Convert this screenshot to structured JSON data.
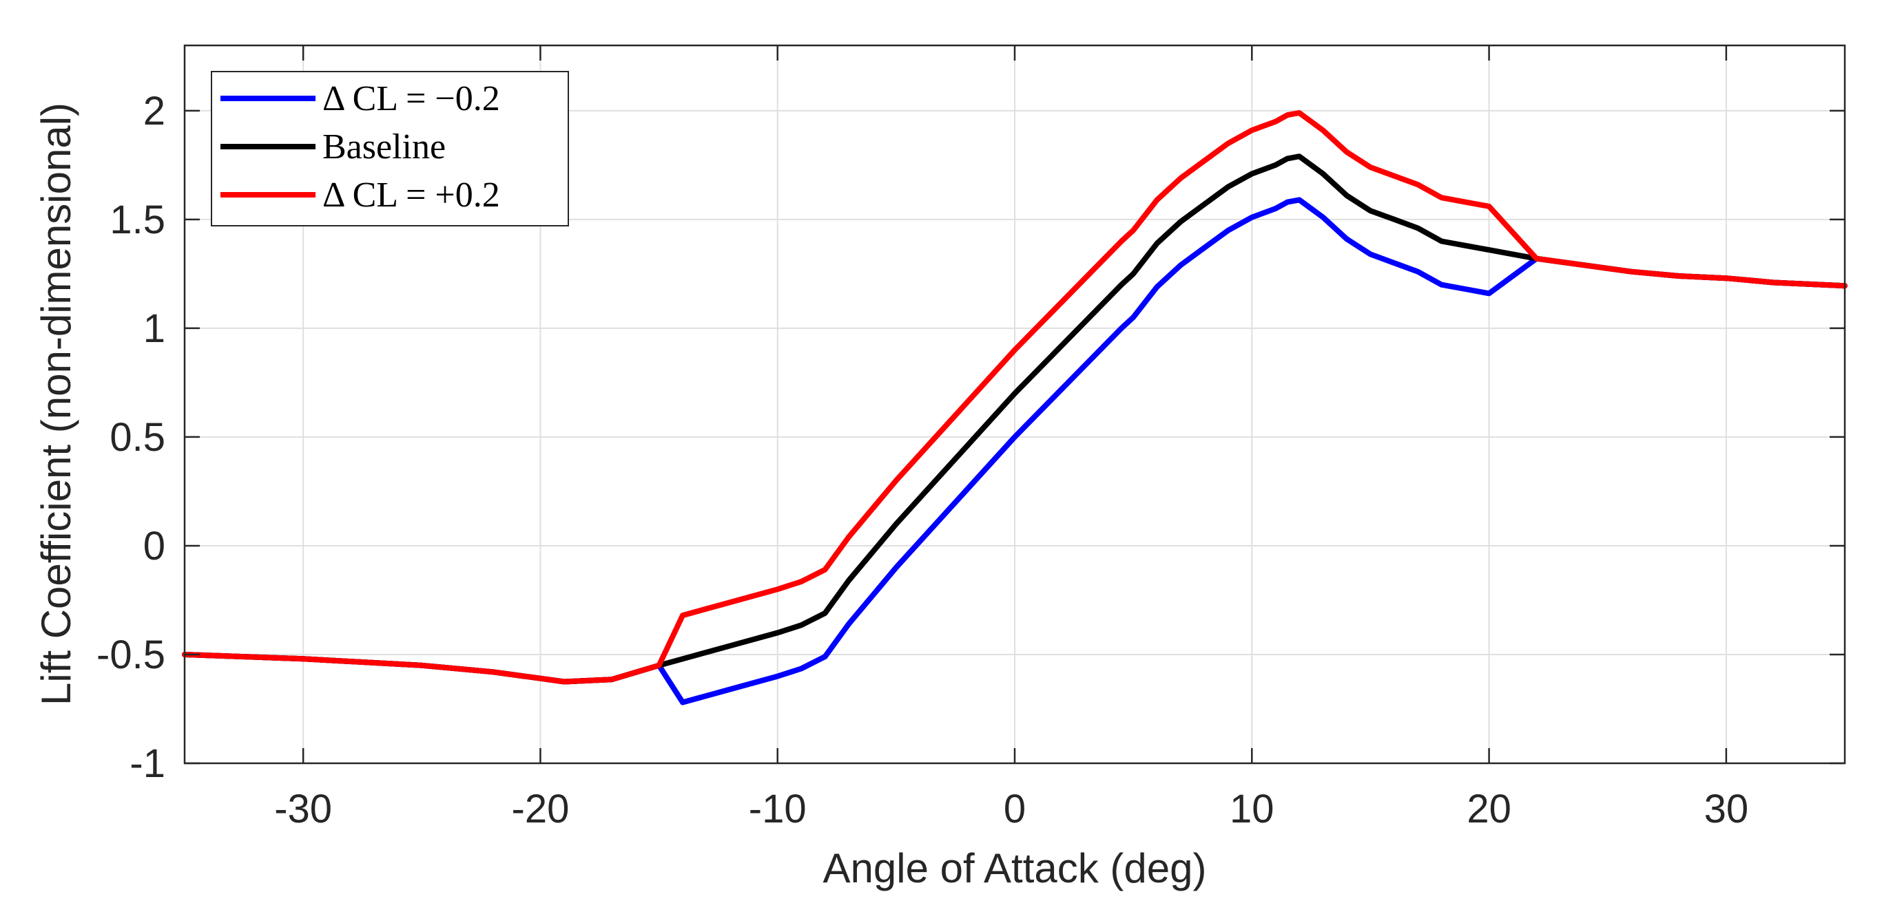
{
  "chart_data": {
    "type": "line",
    "title": "",
    "xlabel": "Angle of Attack (deg)",
    "ylabel": "Lift Coefficient (non-dimensional)",
    "xlim": [
      -35,
      35
    ],
    "ylim": [
      -1,
      2.3
    ],
    "xticks": [
      -30,
      -20,
      -10,
      0,
      10,
      20,
      30
    ],
    "xtick_labels": [
      "-30",
      "-20",
      "-10",
      "0",
      "10",
      "20",
      "30"
    ],
    "yticks": [
      -1,
      -0.5,
      0,
      0.5,
      1,
      1.5,
      2
    ],
    "ytick_labels": [
      "-1",
      "-0.5",
      "0",
      "0.5",
      "1",
      "1.5",
      "2"
    ],
    "grid": true,
    "legend_position": "top-left",
    "series": [
      {
        "name": "Δ CL = −0.2",
        "color": "#0000ff",
        "x": [
          -35,
          -30,
          -25,
          -22,
          -20,
          -19,
          -17,
          -15,
          -14,
          -12,
          -10,
          -9,
          -8,
          -7,
          -5,
          0,
          4.5,
          5,
          6,
          7,
          8,
          9,
          10,
          11,
          11.5,
          12,
          13,
          14,
          15,
          16,
          17,
          18,
          19,
          20,
          21,
          22,
          24,
          26,
          28,
          30,
          32,
          35
        ],
        "y": [
          -0.5,
          -0.52,
          -0.55,
          -0.58,
          -0.61,
          -0.625,
          -0.615,
          -0.55,
          -0.72,
          -0.66,
          -0.6,
          -0.565,
          -0.51,
          -0.36,
          -0.1,
          0.5,
          1.0,
          1.05,
          1.19,
          1.29,
          1.37,
          1.45,
          1.51,
          1.55,
          1.58,
          1.59,
          1.51,
          1.41,
          1.34,
          1.3,
          1.26,
          1.2,
          1.18,
          1.16,
          1.24,
          1.32,
          1.29,
          1.26,
          1.24,
          1.23,
          1.21,
          1.195
        ]
      },
      {
        "name": "Baseline",
        "color": "#000000",
        "x": [
          -35,
          -30,
          -25,
          -22,
          -20,
          -19,
          -17,
          -15,
          -14,
          -12,
          -10,
          -9,
          -8,
          -7,
          -5,
          0,
          4.5,
          5,
          6,
          7,
          8,
          9,
          10,
          11,
          11.5,
          12,
          13,
          14,
          15,
          16,
          17,
          18,
          19,
          20,
          21,
          22,
          24,
          26,
          28,
          30,
          32,
          35
        ],
        "y": [
          -0.5,
          -0.52,
          -0.55,
          -0.58,
          -0.61,
          -0.625,
          -0.615,
          -0.55,
          -0.52,
          -0.46,
          -0.4,
          -0.365,
          -0.31,
          -0.16,
          0.1,
          0.7,
          1.2,
          1.25,
          1.39,
          1.49,
          1.57,
          1.65,
          1.71,
          1.75,
          1.78,
          1.79,
          1.71,
          1.61,
          1.54,
          1.5,
          1.46,
          1.4,
          1.38,
          1.36,
          1.34,
          1.32,
          1.29,
          1.26,
          1.24,
          1.23,
          1.21,
          1.195
        ]
      },
      {
        "name": "Δ CL = +0.2",
        "color": "#ff0000",
        "x": [
          -35,
          -30,
          -25,
          -22,
          -20,
          -19,
          -17,
          -15,
          -14,
          -12,
          -10,
          -9,
          -8,
          -7,
          -5,
          0,
          4.5,
          5,
          6,
          7,
          8,
          9,
          10,
          11,
          11.5,
          12,
          13,
          14,
          15,
          16,
          17,
          18,
          19,
          20,
          21,
          22,
          24,
          26,
          28,
          30,
          32,
          35
        ],
        "y": [
          -0.5,
          -0.52,
          -0.55,
          -0.58,
          -0.61,
          -0.625,
          -0.615,
          -0.55,
          -0.32,
          -0.26,
          -0.2,
          -0.165,
          -0.11,
          0.04,
          0.3,
          0.9,
          1.4,
          1.45,
          1.59,
          1.69,
          1.77,
          1.85,
          1.91,
          1.95,
          1.98,
          1.99,
          1.91,
          1.81,
          1.74,
          1.7,
          1.66,
          1.6,
          1.58,
          1.56,
          1.44,
          1.32,
          1.29,
          1.26,
          1.24,
          1.23,
          1.21,
          1.195
        ]
      }
    ]
  }
}
